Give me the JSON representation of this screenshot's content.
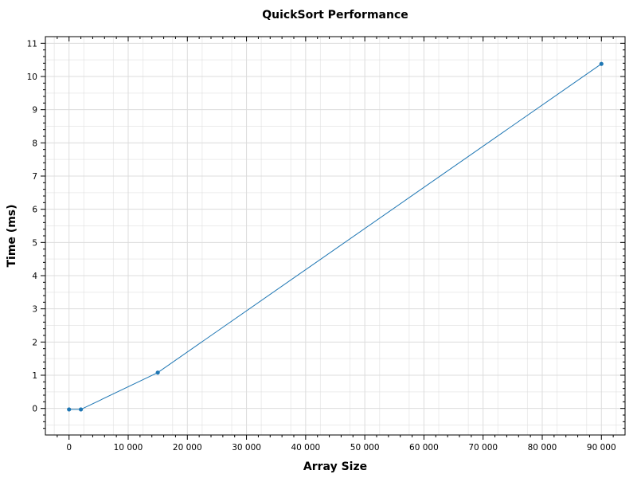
{
  "chart_data": {
    "type": "line",
    "title": "QuickSort Performance",
    "xlabel": "Array Size",
    "ylabel": "Time (ms)",
    "xlim": [
      -4000,
      94000
    ],
    "ylim": [
      -0.8,
      11.2
    ],
    "x_ticks": [
      0,
      10000,
      20000,
      30000,
      40000,
      50000,
      60000,
      70000,
      80000,
      90000
    ],
    "x_tick_labels": [
      "0",
      "10 000",
      "20 000",
      "30 000",
      "40 000",
      "50 000",
      "60 000",
      "70 000",
      "80 000",
      "90 000"
    ],
    "y_ticks": [
      0,
      1,
      2,
      3,
      4,
      5,
      6,
      7,
      8,
      9,
      10,
      11
    ],
    "y_tick_labels": [
      "0",
      "1",
      "2",
      "3",
      "4",
      "5",
      "6",
      "7",
      "8",
      "9",
      "10",
      "11"
    ],
    "grid": true,
    "series": [
      {
        "color": "#1f77b4",
        "x": [
          0,
          2000,
          15000,
          90000
        ],
        "y": [
          -0.03,
          -0.03,
          1.08,
          10.38
        ]
      }
    ]
  }
}
